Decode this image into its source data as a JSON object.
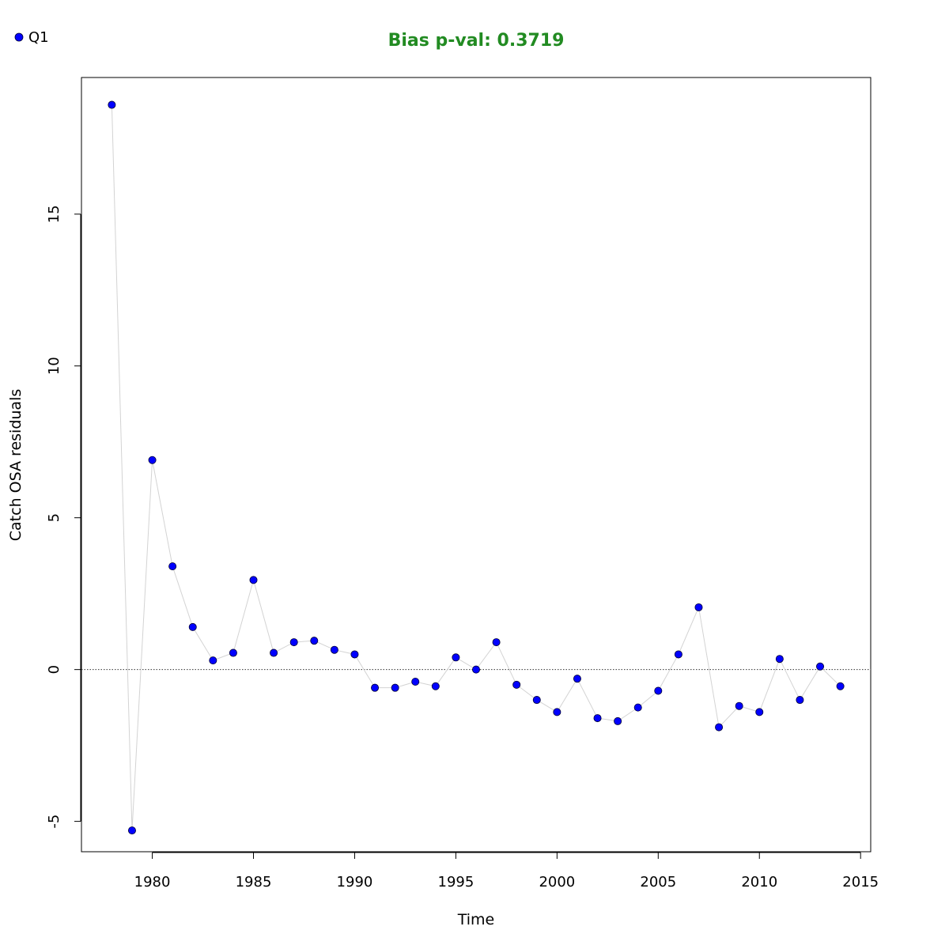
{
  "chart_data": {
    "type": "scatter",
    "title": "Bias p-val: 0.3719",
    "title_color": "#228B22",
    "xlabel": "Time",
    "ylabel": "Catch OSA residuals",
    "xlim": [
      1976.5,
      2015.5
    ],
    "ylim": [
      -6.0,
      19.5
    ],
    "x_ticks": [
      1980,
      1985,
      1990,
      1995,
      2000,
      2005,
      2010,
      2015
    ],
    "y_ticks": [
      -5,
      0,
      5,
      10,
      15
    ],
    "reference_line": 0,
    "grid": false,
    "legend": {
      "placement": "top-left",
      "entries": [
        "Q1"
      ]
    },
    "point_color": "#0000FF",
    "line_color": "#D3D3D3",
    "series": [
      {
        "name": "Q1",
        "x": [
          1978,
          1979,
          1980,
          1981,
          1982,
          1983,
          1984,
          1985,
          1986,
          1987,
          1988,
          1989,
          1990,
          1991,
          1992,
          1993,
          1994,
          1995,
          1996,
          1997,
          1998,
          1999,
          2000,
          2001,
          2002,
          2003,
          2004,
          2005,
          2006,
          2007,
          2008,
          2009,
          2010,
          2011,
          2012,
          2013,
          2014
        ],
        "y": [
          18.6,
          -5.3,
          6.9,
          3.4,
          1.4,
          0.3,
          0.55,
          2.95,
          0.55,
          0.9,
          0.95,
          0.65,
          0.5,
          -0.6,
          -0.6,
          -0.4,
          -0.55,
          0.4,
          0.0,
          0.9,
          -0.5,
          -1.0,
          -1.4,
          -0.3,
          -1.6,
          -1.7,
          -1.25,
          -0.7,
          0.5,
          2.05,
          -1.9,
          -1.2,
          -1.4,
          0.35,
          -1.0,
          0.1,
          -0.55
        ]
      }
    ]
  }
}
